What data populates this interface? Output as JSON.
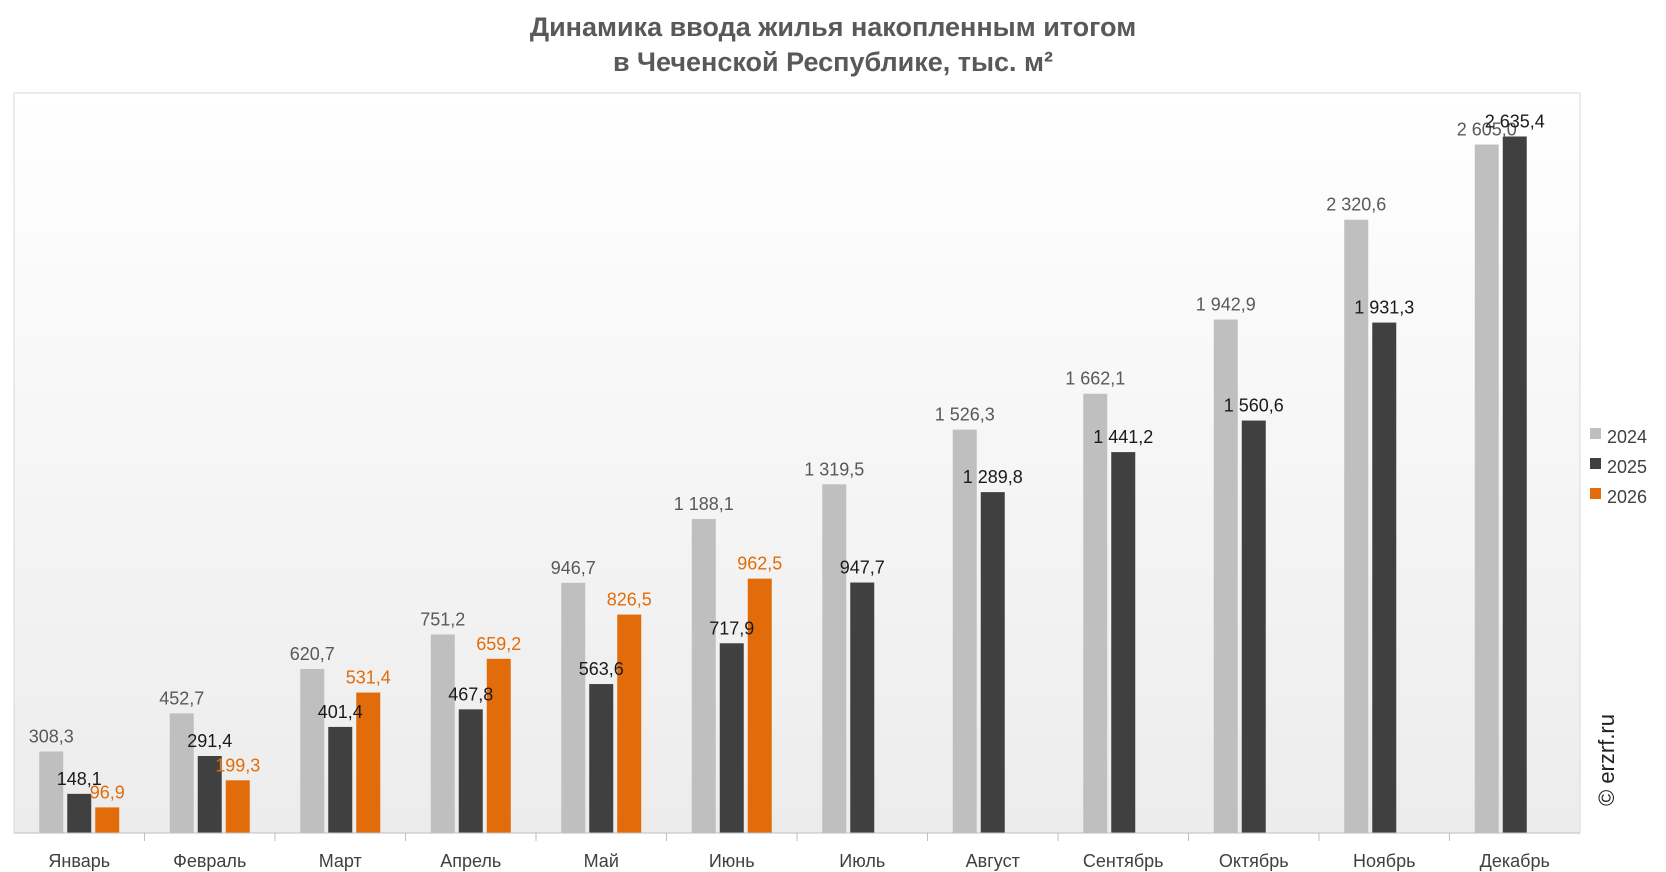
{
  "chart_data": {
    "type": "bar",
    "title": "Динамика ввода жилья накопленным итогом",
    "subtitle": "в Чеченской Республике, тыс. м²",
    "categories": [
      "Январь",
      "Февраль",
      "Март",
      "Апрель",
      "Май",
      "Июнь",
      "Июль",
      "Август",
      "Сентябрь",
      "Октябрь",
      "Ноябрь",
      "Декабрь"
    ],
    "series": [
      {
        "name": "2024",
        "color": "#bfbfbf",
        "label_color": "#595959",
        "values": [
          308.3,
          452.7,
          620.7,
          751.2,
          946.7,
          1188.1,
          1319.5,
          1526.3,
          1662.1,
          1942.9,
          2320.6,
          2605.0
        ],
        "labels": [
          "308,3",
          "452,7",
          "620,7",
          "751,2",
          "946,7",
          "1 188,1",
          "1 319,5",
          "1 526,3",
          "1 662,1",
          "1 942,9",
          "2 320,6",
          "2 605,0"
        ]
      },
      {
        "name": "2025",
        "color": "#404040",
        "label_color": "#1a1a1a",
        "values": [
          148.1,
          291.4,
          401.4,
          467.8,
          563.6,
          717.9,
          947.7,
          1289.8,
          1441.2,
          1560.6,
          1931.3,
          2635.4
        ],
        "labels": [
          "148,1",
          "291,4",
          "401,4",
          "467,8",
          "563,6",
          "717,9",
          "947,7",
          "1 289,8",
          "1 441,2",
          "1 560,6",
          "1 931,3",
          "2 635,4"
        ]
      },
      {
        "name": "2026",
        "color": "#e36c0a",
        "label_color": "#e36c0a",
        "values": [
          96.9,
          199.3,
          531.4,
          659.2,
          826.5,
          962.5,
          null,
          null,
          null,
          null,
          null,
          null
        ],
        "labels": [
          "96,9",
          "199,3",
          "531,4",
          "659,2",
          "826,5",
          "962,5",
          null,
          null,
          null,
          null,
          null,
          null
        ]
      }
    ],
    "ylim": [
      0,
      2800
    ],
    "grid": false,
    "legend_position": "right",
    "watermark": "© erzrf.ru"
  }
}
